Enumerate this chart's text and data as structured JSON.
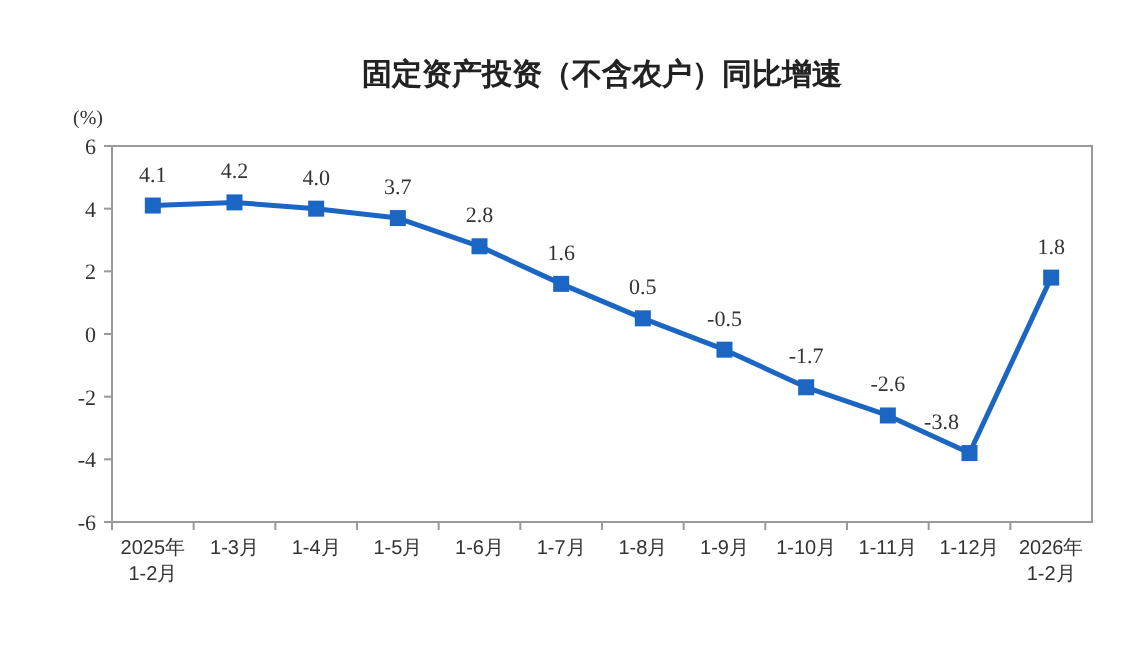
{
  "chart_data": {
    "type": "line",
    "title": "固定资产投资（不含农户）同比增速",
    "ylabel": "(%)",
    "categories": [
      "2025年\n1-2月",
      "1-3月",
      "1-4月",
      "1-5月",
      "1-6月",
      "1-7月",
      "1-8月",
      "1-9月",
      "1-10月",
      "1-11月",
      "1-12月",
      "2026年\n1-2月"
    ],
    "series": [
      {
        "color": "#1a66c2",
        "values": [
          4.1,
          4.2,
          4.0,
          3.7,
          2.8,
          1.6,
          0.5,
          -0.5,
          -1.7,
          -2.6,
          -3.8,
          1.8
        ],
        "value_labels": [
          "4.1",
          "4.2",
          "4.0",
          "3.7",
          "2.8",
          "1.6",
          "0.5",
          "-0.5",
          "-1.7",
          "-2.6",
          "-3.8",
          "1.8"
        ]
      }
    ],
    "ylim": [
      -6,
      6
    ],
    "yticks": [
      -6,
      -4,
      -2,
      0,
      2,
      4,
      6
    ],
    "marker": "square",
    "line_style": "solid",
    "grid": false
  }
}
